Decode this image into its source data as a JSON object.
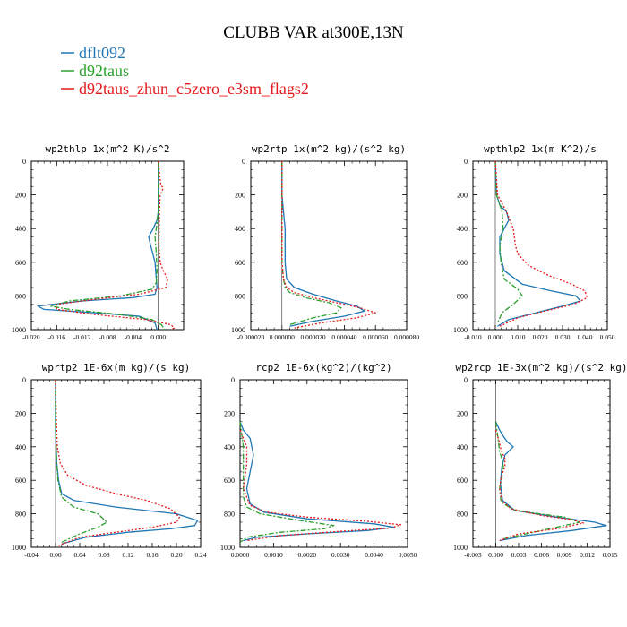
{
  "title": "CLUBB VAR at300E,13N",
  "legend": [
    {
      "label": "dflt092",
      "color": "#1f77b4"
    },
    {
      "label": "d92taus",
      "color": "#2ca02c"
    },
    {
      "label": "d92taus_zhun_c5zero_e3sm_flags2",
      "color": "#e41a1c"
    }
  ],
  "chart_data": [
    {
      "type": "line",
      "title": "wp2thlp   1x(m^2 K)/s^2",
      "xlim": [
        -0.02,
        0.004
      ],
      "ylim": [
        1000,
        0
      ],
      "xticks": [
        -0.02,
        -0.016,
        -0.012,
        -0.008,
        -0.004,
        0.0
      ],
      "xtick_labels": [
        "-0.020",
        "-0.016",
        "-0.012",
        "-0.008",
        "-0.004",
        "0.000"
      ],
      "yticks": [
        0,
        200,
        400,
        600,
        800,
        1000
      ],
      "series": [
        {
          "name": "dflt092",
          "x": [
            0.0,
            0.0,
            0.0,
            -0.0002,
            -0.0008,
            -0.0015,
            -0.0012,
            -0.0005,
            -0.0003,
            -0.0002,
            -0.0005,
            -0.004,
            -0.012,
            -0.019,
            -0.018,
            -0.01,
            -0.003,
            -0.0005,
            -0.0002
          ],
          "y": [
            0,
            150,
            300,
            350,
            400,
            450,
            500,
            600,
            700,
            750,
            790,
            810,
            830,
            860,
            880,
            900,
            920,
            960,
            1000
          ]
        },
        {
          "name": "d92taus",
          "x": [
            0.0,
            0.0,
            0.0,
            -0.0003,
            -0.0005,
            -0.0003,
            -0.0002,
            -0.0003,
            -0.001,
            -0.006,
            -0.014,
            -0.017,
            -0.014,
            -0.006,
            -0.001,
            0.0005,
            0.001
          ],
          "y": [
            0,
            200,
            300,
            400,
            450,
            550,
            650,
            720,
            760,
            800,
            830,
            860,
            880,
            910,
            940,
            970,
            1000
          ]
        },
        {
          "name": "d92taus_zhun_c5zero_e3sm_flags2",
          "x": [
            0.0,
            0.0004,
            0.0008,
            0.0003,
            0.0002,
            0.0001,
            0.0003,
            0.0008,
            0.0015,
            0.0012,
            -0.003,
            -0.01,
            -0.016,
            -0.016,
            -0.01,
            -0.002,
            0.002,
            0.0025,
            0.002
          ],
          "y": [
            0,
            140,
            160,
            200,
            300,
            500,
            600,
            650,
            700,
            750,
            790,
            820,
            850,
            880,
            910,
            940,
            970,
            990,
            1000
          ]
        }
      ]
    },
    {
      "type": "line",
      "title": "wp2rtp   1x(m^2 kg)/(s^2 kg)",
      "xlim": [
        -2e-05,
        8e-05
      ],
      "ylim": [
        1000,
        0
      ],
      "xticks": [
        -2e-05,
        0.0,
        2e-05,
        4e-05,
        6e-05,
        8e-05
      ],
      "xtick_labels": [
        "-0.000020",
        "0.000000",
        "0.000020",
        "0.000040",
        "0.000060",
        "0.000080"
      ],
      "yticks": [
        0,
        200,
        400,
        600,
        800,
        1000
      ],
      "series": [
        {
          "name": "dflt092",
          "x": [
            0.0,
            0.0,
            1e-06,
            2e-06,
            2e-06,
            2e-06,
            3e-06,
            8e-06,
            2e-05,
            3.5e-05,
            4.8e-05,
            5.3e-05,
            4e-05,
            2e-05,
            5e-06
          ],
          "y": [
            0,
            200,
            300,
            400,
            500,
            600,
            700,
            750,
            790,
            830,
            860,
            890,
            920,
            950,
            980
          ]
        },
        {
          "name": "d92taus",
          "x": [
            0.0,
            0.0,
            0.0,
            0.0,
            1e-06,
            2e-06,
            5e-06,
            1.5e-05,
            3e-05,
            3.8e-05,
            3.5e-05,
            2e-05,
            5e-06
          ],
          "y": [
            0,
            200,
            400,
            600,
            700,
            750,
            780,
            810,
            840,
            870,
            900,
            930,
            970
          ]
        },
        {
          "name": "d92taus_zhun_c5zero_e3sm_flags2",
          "x": [
            0.0,
            0.0,
            0.0,
            0.0,
            1e-06,
            3e-06,
            8e-06,
            2e-05,
            3.5e-05,
            5e-05,
            6e-05,
            4.8e-05,
            2.5e-05,
            8e-06
          ],
          "y": [
            0,
            200,
            400,
            600,
            700,
            750,
            780,
            810,
            840,
            870,
            900,
            930,
            960,
            990
          ]
        }
      ]
    },
    {
      "type": "line",
      "title": "wpthlp2   1x(m K^2)/s",
      "xlim": [
        -0.01,
        0.05
      ],
      "ylim": [
        1000,
        0
      ],
      "xticks": [
        -0.01,
        0.0,
        0.01,
        0.02,
        0.03,
        0.04,
        0.05
      ],
      "xtick_labels": [
        "-0.010",
        "0.000",
        "0.010",
        "0.020",
        "0.030",
        "0.040",
        "0.050"
      ],
      "yticks": [
        0,
        200,
        400,
        600,
        800,
        1000
      ],
      "series": [
        {
          "name": "dflt092",
          "x": [
            0.0,
            0.0005,
            0.002,
            0.005,
            0.006,
            0.004,
            0.002,
            0.002,
            0.004,
            0.012,
            0.025,
            0.036,
            0.038,
            0.03,
            0.018,
            0.006,
            0.001
          ],
          "y": [
            0,
            200,
            260,
            300,
            350,
            400,
            450,
            550,
            650,
            730,
            770,
            800,
            830,
            860,
            900,
            940,
            980
          ]
        },
        {
          "name": "d92taus",
          "x": [
            0.0,
            0.0005,
            0.003,
            0.0035,
            0.002,
            0.0025,
            0.004,
            0.01,
            0.012,
            0.008,
            0.003,
            0.001
          ],
          "y": [
            0,
            200,
            300,
            400,
            500,
            600,
            700,
            760,
            800,
            850,
            900,
            960
          ]
        },
        {
          "name": "d92taus_zhun_c5zero_e3sm_flags2",
          "x": [
            0.0,
            0.001,
            0.005,
            0.008,
            0.009,
            0.01,
            0.015,
            0.024,
            0.034,
            0.04,
            0.041,
            0.035,
            0.022,
            0.01,
            0.002
          ],
          "y": [
            0,
            200,
            300,
            400,
            500,
            550,
            620,
            680,
            730,
            770,
            810,
            850,
            890,
            930,
            980
          ]
        }
      ]
    },
    {
      "type": "line",
      "title": "wprtp2   1E-6x(m kg)/(s kg)",
      "xlim": [
        -0.04,
        0.24
      ],
      "ylim": [
        1000,
        0
      ],
      "xticks": [
        -0.04,
        0.0,
        0.04,
        0.08,
        0.12,
        0.16,
        0.2,
        0.24
      ],
      "xtick_labels": [
        "-0.04",
        "0.00",
        "0.04",
        "0.08",
        "0.12",
        "0.16",
        "0.20",
        "0.24"
      ],
      "yticks": [
        0,
        200,
        400,
        600,
        800,
        1000
      ],
      "series": [
        {
          "name": "dflt092",
          "x": [
            0.0,
            0.0,
            0.001,
            0.002,
            0.005,
            0.01,
            0.03,
            0.1,
            0.2,
            0.235,
            0.23,
            0.19,
            0.12,
            0.05,
            0.01
          ],
          "y": [
            0,
            300,
            400,
            500,
            600,
            680,
            720,
            760,
            800,
            840,
            870,
            890,
            910,
            940,
            980
          ]
        },
        {
          "name": "d92taus",
          "x": [
            0.0,
            0.0,
            0.001,
            0.002,
            0.004,
            0.01,
            0.03,
            0.07,
            0.085,
            0.07,
            0.04,
            0.01
          ],
          "y": [
            0,
            300,
            400,
            500,
            600,
            700,
            760,
            800,
            850,
            880,
            920,
            970
          ]
        },
        {
          "name": "d92taus_zhun_c5zero_e3sm_flags2",
          "x": [
            0.0,
            0.001,
            0.003,
            0.008,
            0.02,
            0.05,
            0.1,
            0.15,
            0.19,
            0.205,
            0.2,
            0.16,
            0.1,
            0.04,
            0.005
          ],
          "y": [
            0,
            200,
            400,
            500,
            570,
            630,
            680,
            720,
            770,
            820,
            850,
            880,
            910,
            940,
            990
          ]
        }
      ]
    },
    {
      "type": "line",
      "title": "rcp2   1E-6x(kg^2)/(kg^2)",
      "xlim": [
        0.0,
        0.005
      ],
      "ylim": [
        1000,
        0
      ],
      "xticks": [
        0.0,
        0.001,
        0.002,
        0.003,
        0.004,
        0.005
      ],
      "xtick_labels": [
        "0.0000",
        "0.0010",
        "0.0020",
        "0.0030",
        "0.0040",
        "0.0050"
      ],
      "yticks": [
        0,
        200,
        400,
        600,
        800,
        1000
      ],
      "series": [
        {
          "name": "dflt092",
          "x": [
            0.0,
            0.0001,
            0.0003,
            0.0004,
            0.0003,
            0.0002,
            0.0003,
            0.0007,
            0.002,
            0.004,
            0.0046,
            0.0038,
            0.002,
            0.0005,
            0.0001
          ],
          "y": [
            250,
            300,
            350,
            450,
            550,
            650,
            740,
            790,
            830,
            860,
            880,
            900,
            920,
            940,
            960
          ]
        },
        {
          "name": "d92taus",
          "x": [
            0.0,
            0.0001,
            0.0001,
            0.0001,
            0.0002,
            0.0006,
            0.0018,
            0.0028,
            0.0025,
            0.0012,
            0.0002,
            0.0
          ],
          "y": [
            250,
            400,
            550,
            700,
            760,
            800,
            840,
            870,
            890,
            910,
            940,
            970
          ]
        },
        {
          "name": "d92taus_zhun_c5zero_e3sm_flags2",
          "x": [
            0.0,
            0.0001,
            0.0002,
            0.0002,
            0.0001,
            0.0003,
            0.0008,
            0.002,
            0.0038,
            0.0048,
            0.0045,
            0.003,
            0.0012,
            0.0002
          ],
          "y": [
            300,
            350,
            400,
            500,
            650,
            750,
            790,
            820,
            845,
            865,
            885,
            905,
            930,
            960
          ]
        }
      ]
    },
    {
      "type": "line",
      "title": "wp2rcp   1E-3x(m^2 kg)/(s^2 kg)",
      "xlim": [
        -0.003,
        0.015
      ],
      "ylim": [
        1000,
        0
      ],
      "xticks": [
        -0.003,
        0.0,
        0.003,
        0.006,
        0.009,
        0.012,
        0.015
      ],
      "xtick_labels": [
        "-0.003",
        "0.000",
        "0.003",
        "0.006",
        "0.009",
        "0.012",
        "0.015"
      ],
      "yticks": [
        0,
        200,
        400,
        600,
        800,
        1000
      ],
      "series": [
        {
          "name": "dflt092",
          "x": [
            0.0,
            0.0005,
            0.0009,
            0.0015,
            0.0023,
            0.0012,
            0.0008,
            0.0006,
            0.0009,
            0.0025,
            0.008,
            0.013,
            0.0145,
            0.01,
            0.004,
            0.0005
          ],
          "y": [
            250,
            300,
            330,
            370,
            400,
            450,
            520,
            620,
            720,
            780,
            820,
            850,
            870,
            900,
            930,
            960
          ]
        },
        {
          "name": "d92taus",
          "x": [
            0.0,
            0.0003,
            0.0005,
            0.0008,
            0.001,
            0.0008,
            0.0005,
            0.0007,
            0.0025,
            0.009,
            0.011,
            0.007,
            0.001
          ],
          "y": [
            250,
            350,
            430,
            470,
            520,
            580,
            650,
            730,
            780,
            820,
            850,
            890,
            950
          ]
        },
        {
          "name": "d92taus_zhun_c5zero_e3sm_flags2",
          "x": [
            0.0,
            0.0004,
            0.0007,
            0.0012,
            0.0012,
            0.0007,
            0.0005,
            0.0008,
            0.002,
            0.006,
            0.01,
            0.0115,
            0.008,
            0.003,
            0.0005
          ],
          "y": [
            300,
            360,
            420,
            470,
            520,
            580,
            650,
            720,
            770,
            810,
            835,
            855,
            890,
            920,
            960
          ]
        }
      ]
    }
  ]
}
